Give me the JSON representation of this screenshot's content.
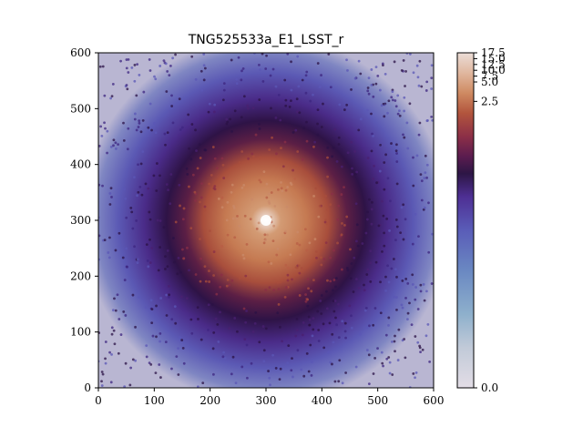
{
  "chart_data": {
    "type": "heatmap",
    "title": "TNG525533a_E1_LSST_r",
    "xlabel": "",
    "ylabel": "",
    "xlim": [
      0,
      600
    ],
    "ylim": [
      0,
      600
    ],
    "x_ticks": [
      0,
      100,
      200,
      300,
      400,
      500,
      600
    ],
    "y_ticks": [
      0,
      100,
      200,
      300,
      400,
      500,
      600
    ],
    "image_description_center": [
      300,
      300
    ],
    "colormap": "twilight_shifted",
    "colorbar": {
      "range": [
        0.0,
        17.5
      ],
      "scale": "nonlinear",
      "tick_values": [
        0.0,
        2.5,
        5.0,
        7.5,
        10.0,
        12.5,
        15.0,
        17.5
      ],
      "tick_labels": [
        "0.0",
        "2.5",
        "5.0",
        "7.5",
        "10.0",
        "12.5",
        "15.0",
        "17.5"
      ],
      "colors": [
        "#e3dde6",
        "#c1cad8",
        "#8eb0cc",
        "#6a88c2",
        "#5a5db8",
        "#4e2f94",
        "#2d1645",
        "#5a1c4f",
        "#8c2f47",
        "#b2553d",
        "#cf8a62",
        "#e0b79f",
        "#ebddd7"
      ]
    }
  }
}
